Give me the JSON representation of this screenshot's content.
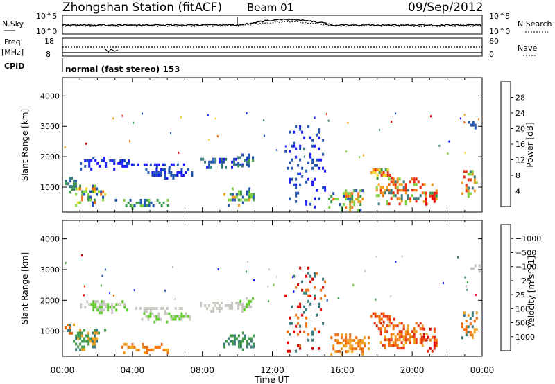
{
  "header": {
    "title": "Zhongshan Station (fitACF)",
    "beam": "Beam 01",
    "date": "09/Sep/2012"
  },
  "top_panels": {
    "nsky": {
      "label": "N.Sky",
      "right_label": "N.Search",
      "left_ticks": [
        "10^5",
        "10^0"
      ],
      "right_ticks": [
        "10^5",
        "10^0"
      ]
    },
    "freq": {
      "label_line1": "Freq.",
      "label_line2": "[MHz]",
      "right_label": "Nave",
      "left_ticks": [
        "18",
        "8"
      ],
      "right_ticks": [
        "60",
        "0"
      ]
    },
    "cpid": {
      "label": "CPID",
      "text": "normal (fast stereo) 153"
    }
  },
  "chart_data": [
    {
      "type": "heatmap",
      "name": "power",
      "ylabel": "Slant Range [km]",
      "xlabel": "",
      "x_ticks": [
        "00:00",
        "04:00",
        "08:00",
        "12:00",
        "16:00",
        "20:00",
        "00:00"
      ],
      "xlim_hours": [
        0,
        24
      ],
      "y_ticks": [
        1000,
        2000,
        3000,
        4000
      ],
      "ylim": [
        180,
        4600
      ],
      "colorbar": {
        "label": "Power [dB]",
        "ticks": [
          "4",
          "8",
          "12",
          "16",
          "20",
          "24",
          "28"
        ],
        "colors": [
          "#1a1aff",
          "#2255b0",
          "#3a7a7a",
          "#3f9a4a",
          "#7fd040",
          "#f0d020",
          "#f0a020",
          "#f07010",
          "#e83010",
          "#e00000"
        ]
      },
      "regions": [
        {
          "t0": 0.0,
          "t1": 0.8,
          "r0": 700,
          "r1": 1300,
          "c": [
            1,
            2,
            3
          ]
        },
        {
          "t0": 0.6,
          "t1": 2.5,
          "r0": 350,
          "r1": 1050,
          "c": [
            1,
            3,
            4,
            5,
            7
          ]
        },
        {
          "t0": 1.0,
          "t1": 3.8,
          "r0": 1550,
          "r1": 1950,
          "c": [
            0,
            1
          ]
        },
        {
          "t0": 3.8,
          "t1": 7.0,
          "r0": 1600,
          "r1": 1750,
          "c": [
            0,
            1
          ]
        },
        {
          "t0": 4.5,
          "t1": 7.5,
          "r0": 1250,
          "r1": 1600,
          "c": [
            0,
            1
          ]
        },
        {
          "t0": 7.5,
          "t1": 10.5,
          "r0": 1600,
          "r1": 1950,
          "c": [
            0,
            1,
            2
          ]
        },
        {
          "t0": 10.0,
          "t1": 10.9,
          "r0": 1650,
          "r1": 2050,
          "c": [
            1,
            2,
            3
          ]
        },
        {
          "t0": 3.0,
          "t1": 6.0,
          "r0": 250,
          "r1": 550,
          "c": [
            1,
            3,
            4
          ]
        },
        {
          "t0": 9.2,
          "t1": 10.9,
          "r0": 350,
          "r1": 900,
          "c": [
            1,
            3,
            4,
            6
          ]
        },
        {
          "t0": 12.7,
          "t1": 15.0,
          "r0": 300,
          "r1": 3100,
          "c": [
            0,
            1
          ],
          "sparse": true
        },
        {
          "t0": 15.2,
          "t1": 17.5,
          "r0": 200,
          "r1": 900,
          "c": [
            1,
            3,
            4,
            6,
            7
          ]
        },
        {
          "t0": 17.6,
          "t1": 19.0,
          "r0": 1250,
          "r1": 1600,
          "c": [
            3,
            5,
            6,
            8
          ]
        },
        {
          "t0": 17.8,
          "t1": 20.8,
          "r0": 400,
          "r1": 1300,
          "c": [
            2,
            4,
            6,
            7,
            8
          ]
        },
        {
          "t0": 20.5,
          "t1": 21.4,
          "r0": 300,
          "r1": 1100,
          "c": [
            3,
            6,
            8,
            9
          ]
        },
        {
          "t0": 22.8,
          "t1": 23.7,
          "r0": 650,
          "r1": 1600,
          "c": [
            2,
            4,
            6,
            8
          ]
        },
        {
          "t0": 23.2,
          "t1": 23.8,
          "r0": 2900,
          "r1": 3150,
          "c": [
            0,
            1
          ]
        }
      ]
    },
    {
      "type": "heatmap",
      "name": "velocity",
      "ylabel": "Slant Range [km]",
      "xlabel": "Time UT",
      "x_ticks": [
        "00:00",
        "04:00",
        "08:00",
        "12:00",
        "16:00",
        "20:00",
        "00:00"
      ],
      "xlim_hours": [
        0,
        24
      ],
      "y_ticks": [
        1000,
        2000,
        3000,
        4000
      ],
      "ylim": [
        180,
        4600
      ],
      "colorbar": {
        "label": "Velocity [m s^-1]",
        "ticks": [
          "1000",
          "500",
          "100",
          "25",
          "−25",
          "−100",
          "−500",
          "−1000"
        ],
        "colors": [
          "#1a1aff",
          "#2255b0",
          "#3a7a7a",
          "#3f9a4a",
          "#66cc33",
          "#c8c8c0",
          "#c8c8c0",
          "#f0a020",
          "#f07010",
          "#e83010",
          "#e00000"
        ]
      },
      "regions": [
        {
          "t0": 0.0,
          "t1": 0.8,
          "r0": 700,
          "r1": 1300,
          "c": [
            7,
            8,
            2
          ]
        },
        {
          "t0": 0.6,
          "t1": 2.5,
          "r0": 350,
          "r1": 1050,
          "c": [
            2,
            3,
            7
          ]
        },
        {
          "t0": 1.0,
          "t1": 3.8,
          "r0": 1550,
          "r1": 1950,
          "c": [
            5,
            4
          ]
        },
        {
          "t0": 3.8,
          "t1": 7.0,
          "r0": 1600,
          "r1": 1750,
          "c": [
            5
          ]
        },
        {
          "t0": 4.5,
          "t1": 7.5,
          "r0": 1250,
          "r1": 1600,
          "c": [
            5,
            4
          ]
        },
        {
          "t0": 7.5,
          "t1": 10.5,
          "r0": 1600,
          "r1": 1950,
          "c": [
            5
          ]
        },
        {
          "t0": 10.0,
          "t1": 10.9,
          "r0": 1650,
          "r1": 2050,
          "c": [
            5,
            4
          ]
        },
        {
          "t0": 3.0,
          "t1": 6.0,
          "r0": 250,
          "r1": 550,
          "c": [
            7,
            8
          ]
        },
        {
          "t0": 9.2,
          "t1": 10.9,
          "r0": 350,
          "r1": 900,
          "c": [
            2,
            3
          ]
        },
        {
          "t0": 12.7,
          "t1": 15.0,
          "r0": 300,
          "r1": 3100,
          "c": [
            10,
            2,
            8
          ],
          "sparse": true
        },
        {
          "t0": 15.2,
          "t1": 17.5,
          "r0": 200,
          "r1": 900,
          "c": [
            7,
            8
          ]
        },
        {
          "t0": 17.6,
          "t1": 19.0,
          "r0": 1250,
          "r1": 1600,
          "c": [
            8,
            9
          ]
        },
        {
          "t0": 17.8,
          "t1": 20.8,
          "r0": 400,
          "r1": 1300,
          "c": [
            7,
            8,
            9
          ]
        },
        {
          "t0": 20.5,
          "t1": 21.4,
          "r0": 300,
          "r1": 1100,
          "c": [
            8,
            9,
            10
          ]
        },
        {
          "t0": 22.8,
          "t1": 23.7,
          "r0": 650,
          "r1": 1600,
          "c": [
            2,
            7,
            8
          ]
        },
        {
          "t0": 23.2,
          "t1": 23.8,
          "r0": 2900,
          "r1": 3150,
          "c": [
            5
          ]
        }
      ]
    }
  ]
}
